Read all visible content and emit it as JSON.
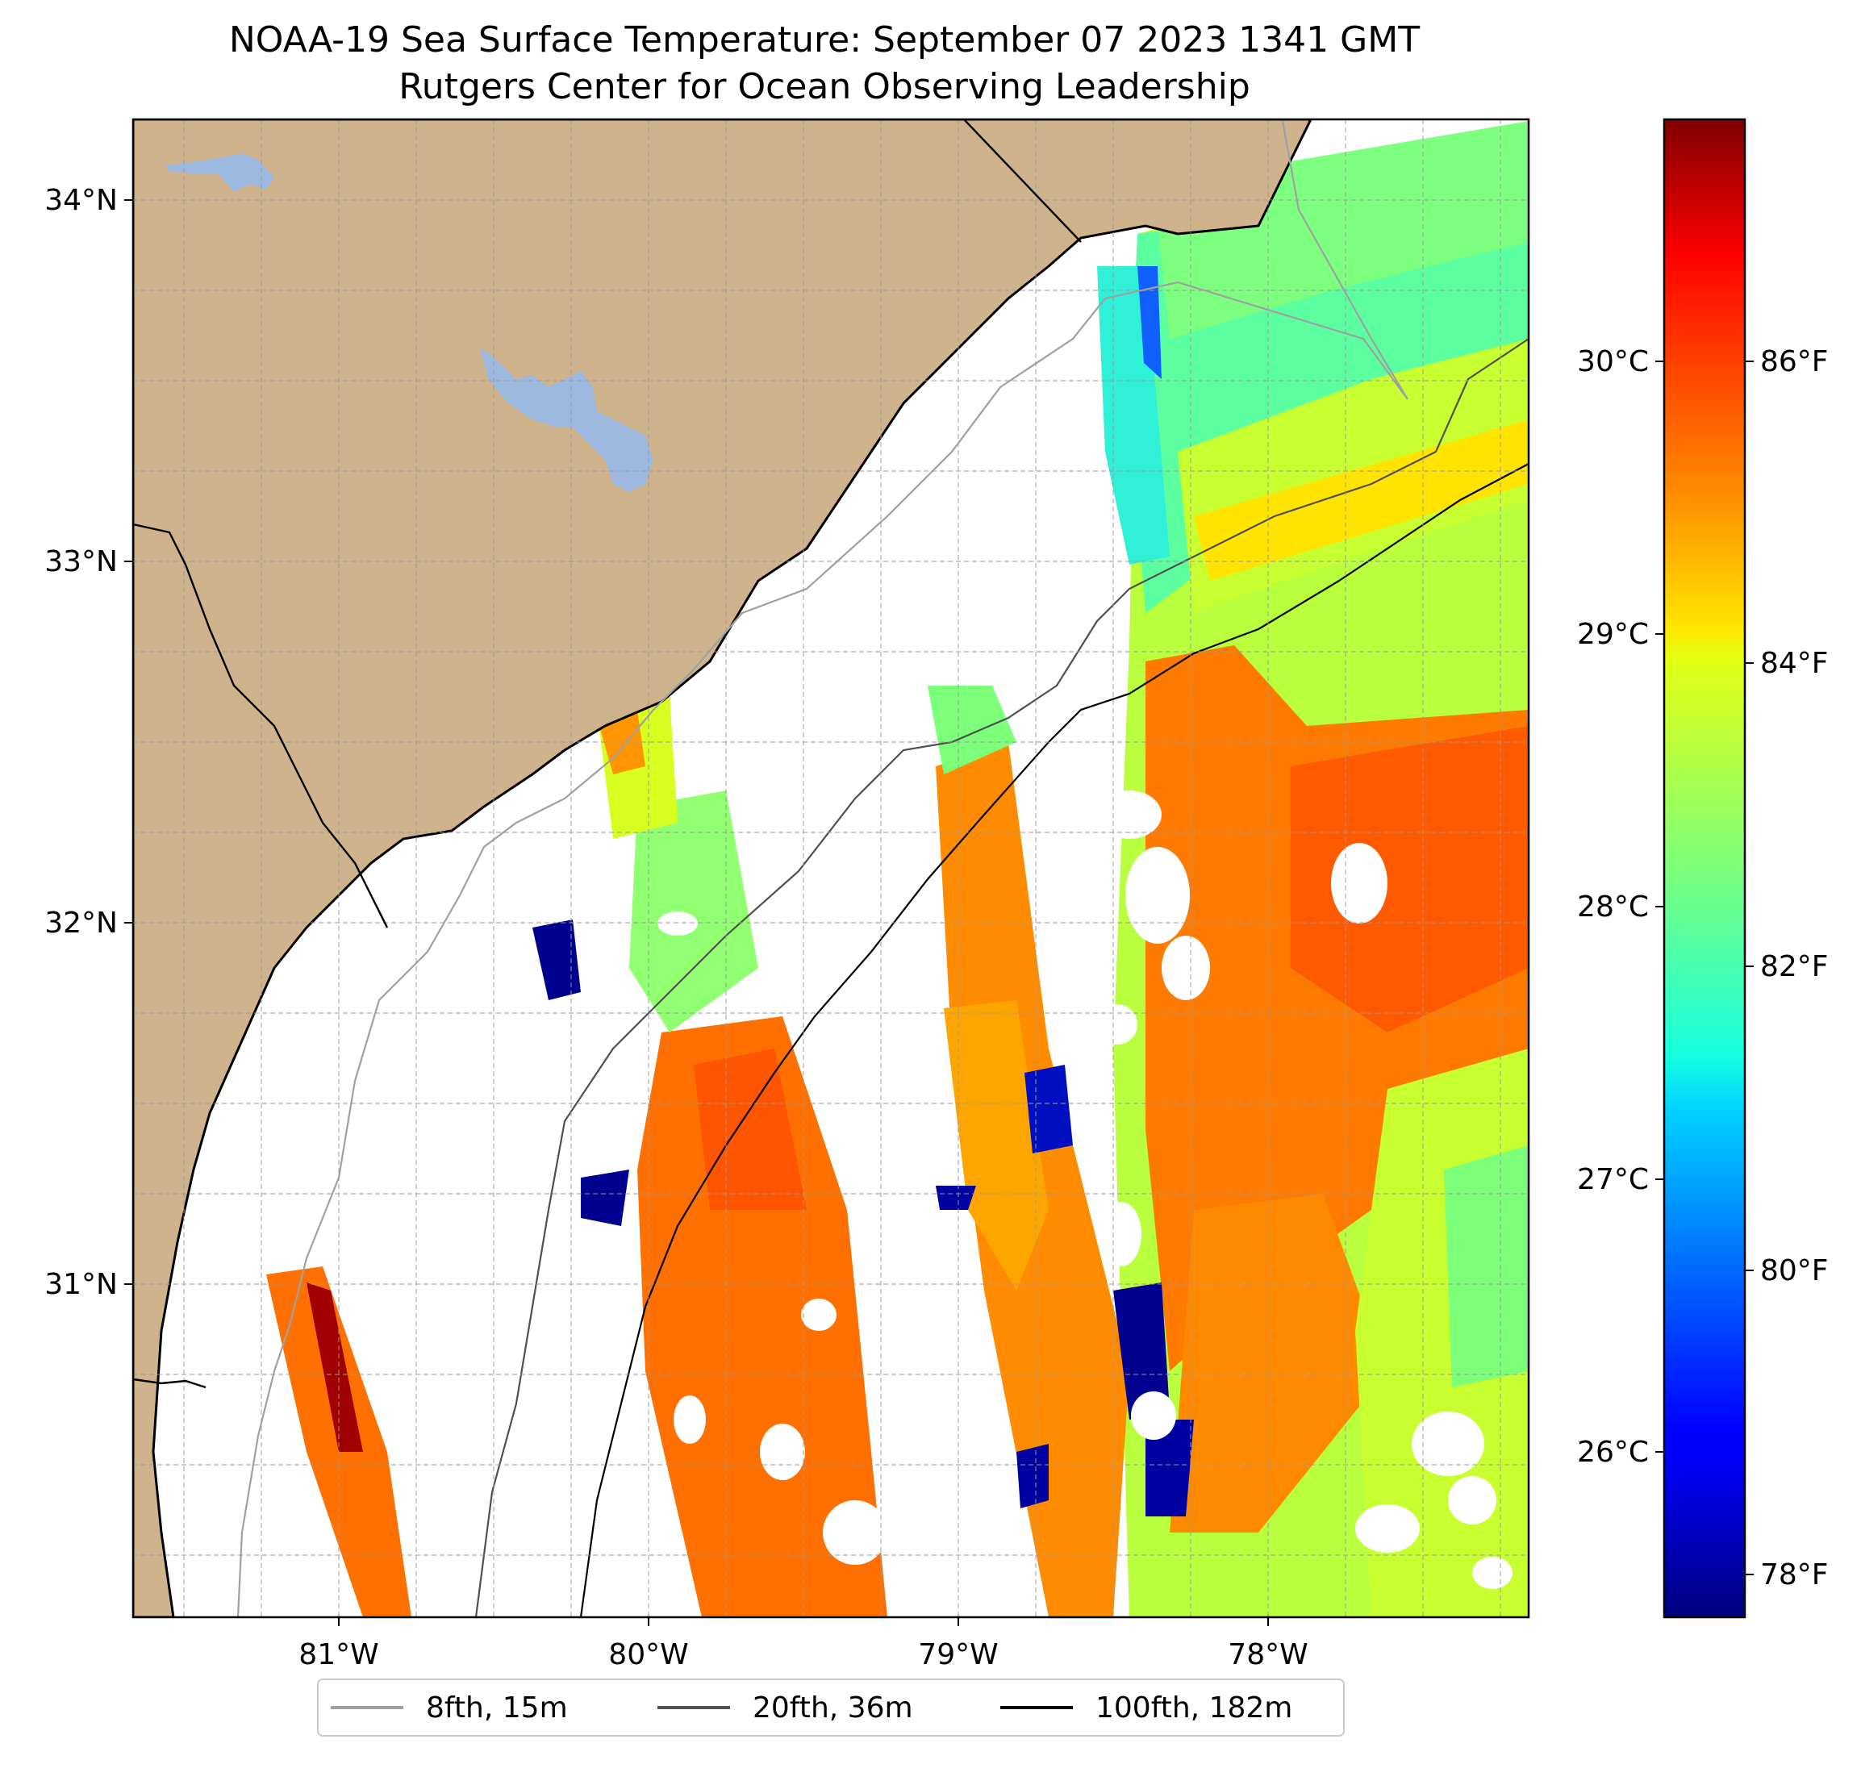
{
  "title": {
    "line1": "NOAA-19 Sea Surface Temperature: September 07 2023 1341 GMT",
    "line2": "Rutgers Center for Ocean Observing Leadership"
  },
  "map": {
    "lon_range": [
      -81.67,
      -77.1
    ],
    "lat_range": [
      30.07,
      34.22
    ],
    "lon_ticks": [
      {
        "value": -81,
        "label": "81°W"
      },
      {
        "value": -80,
        "label": "80°W"
      },
      {
        "value": -79,
        "label": "79°W"
      },
      {
        "value": -78,
        "label": "78°W"
      }
    ],
    "lat_ticks": [
      {
        "value": 31,
        "label": "31°N"
      },
      {
        "value": 32,
        "label": "32°N"
      },
      {
        "value": 33,
        "label": "33°N"
      },
      {
        "value": 34,
        "label": "34°N"
      }
    ],
    "gridlines": true,
    "gridline_spacing_deg": 0.25,
    "land_color": "#cfb38c",
    "water_color": "#9db9e0",
    "no_data_color": "#ffffff"
  },
  "colorbar": {
    "colormap": "jet",
    "range_celsius": [
      25.4,
      30.9
    ],
    "celsius_ticks": [
      {
        "value": 26,
        "label": "26°C"
      },
      {
        "value": 27,
        "label": "27°C"
      },
      {
        "value": 28,
        "label": "28°C"
      },
      {
        "value": 29,
        "label": "29°C"
      },
      {
        "value": 30,
        "label": "30°C"
      }
    ],
    "fahrenheit_ticks": [
      {
        "value": 78,
        "label": "78°F"
      },
      {
        "value": 80,
        "label": "80°F"
      },
      {
        "value": 82,
        "label": "82°F"
      },
      {
        "value": 84,
        "label": "84°F"
      },
      {
        "value": 86,
        "label": "86°F"
      }
    ]
  },
  "legend": {
    "placement": "bottom-center",
    "entries": [
      {
        "label": "8fth, 15m",
        "color": "#a0a0a0"
      },
      {
        "label": "20fth, 36m",
        "color": "#505050"
      },
      {
        "label": "100fth, 182m",
        "color": "#000000"
      }
    ]
  }
}
